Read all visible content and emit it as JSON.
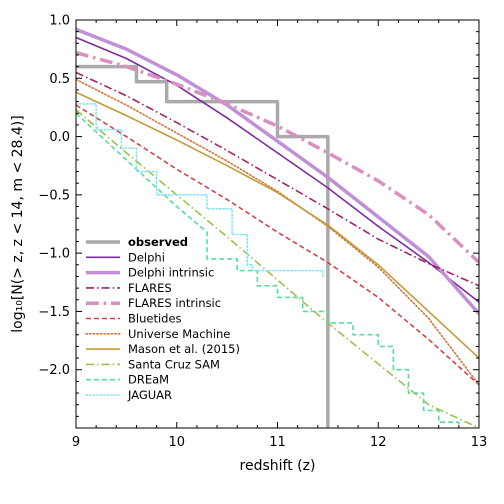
{
  "chart_data": {
    "type": "line",
    "title": "",
    "xlabel": "redshift (z)",
    "ylabel": "log₁₀[N(> z, z < 14, m < 28.4)]",
    "xlim": [
      9,
      13
    ],
    "ylim": [
      -2.5,
      1.0
    ],
    "xticks": [
      9,
      10,
      11,
      12,
      13
    ],
    "xtick_labels": [
      "9",
      "10",
      "11",
      "12",
      "13"
    ],
    "yticks": [
      1.0,
      0.5,
      0.0,
      -0.5,
      -1.0,
      -1.5,
      -2.0
    ],
    "ytick_labels": [
      "1.0",
      "0.5",
      "0.0",
      "−0.5",
      "−1.0",
      "−1.5",
      "−2.0"
    ],
    "grid": false,
    "legend_position": "lower-left",
    "series": [
      {
        "name": "observed",
        "color": "#aaaaaa",
        "style": "step",
        "dash": "solid",
        "width": 3.5,
        "bold": true,
        "x": [
          9.0,
          9.6,
          9.6,
          9.9,
          9.9,
          11.0,
          11.0,
          11.5,
          11.5
        ],
        "y": [
          0.6,
          0.6,
          0.47,
          0.47,
          0.3,
          0.3,
          0.0,
          0.0,
          -2.5
        ]
      },
      {
        "name": "Delphi",
        "color": "#7b2d9f",
        "style": "line",
        "dash": "solid",
        "width": 1.6,
        "x": [
          9.0,
          9.5,
          10.0,
          10.5,
          11.0,
          11.5,
          12.0,
          12.5,
          13.0
        ],
        "y": [
          0.85,
          0.67,
          0.44,
          0.16,
          -0.14,
          -0.44,
          -0.77,
          -1.08,
          -1.42
        ]
      },
      {
        "name": "Delphi intrinsic",
        "color": "#c08fd6",
        "style": "line",
        "dash": "solid",
        "width": 3.5,
        "x": [
          9.0,
          9.5,
          10.0,
          10.5,
          11.0,
          11.5,
          12.0,
          12.5,
          13.0
        ],
        "y": [
          0.92,
          0.75,
          0.53,
          0.27,
          -0.04,
          -0.35,
          -0.69,
          -1.03,
          -1.52
        ]
      },
      {
        "name": "FLARES",
        "color": "#a3226b",
        "style": "line",
        "dash": "dashdot",
        "width": 1.6,
        "x": [
          9.0,
          9.5,
          10.0,
          10.5,
          11.0,
          11.5,
          12.0,
          12.5,
          13.0
        ],
        "y": [
          0.55,
          0.35,
          0.12,
          -0.12,
          -0.37,
          -0.62,
          -0.88,
          -1.09,
          -1.28
        ]
      },
      {
        "name": "FLARES intrinsic",
        "color": "#d98fbf",
        "style": "line",
        "dash": "dashdot",
        "width": 3.5,
        "x": [
          9.0,
          9.5,
          10.0,
          10.5,
          11.0,
          11.5,
          12.0,
          12.5,
          13.0
        ],
        "y": [
          0.72,
          0.6,
          0.45,
          0.28,
          0.09,
          -0.14,
          -0.38,
          -0.67,
          -1.08
        ]
      },
      {
        "name": "Bluetides",
        "color": "#d0444c",
        "style": "line",
        "dash": "dashed",
        "width": 1.6,
        "x": [
          9.0,
          9.5,
          10.0,
          10.5,
          11.0,
          11.5,
          12.0,
          12.5,
          13.0
        ],
        "y": [
          0.27,
          0.0,
          -0.28,
          -0.54,
          -0.82,
          -1.08,
          -1.38,
          -1.74,
          -2.13
        ]
      },
      {
        "name": "Universe Machine",
        "color": "#d4733a",
        "style": "line",
        "dash": "dotted",
        "width": 1.6,
        "x": [
          9.0,
          9.5,
          10.0,
          10.5,
          11.0,
          11.5,
          12.0,
          12.5,
          13.0
        ],
        "y": [
          0.49,
          0.27,
          0.03,
          -0.21,
          -0.47,
          -0.77,
          -1.12,
          -1.56,
          -2.13
        ]
      },
      {
        "name": "Mason et al. (2015)",
        "color": "#c29a38",
        "style": "line",
        "dash": "solid",
        "width": 1.6,
        "x": [
          9.0,
          9.5,
          10.0,
          10.5,
          11.0,
          11.5,
          12.0,
          12.5,
          13.0
        ],
        "y": [
          0.38,
          0.18,
          -0.03,
          -0.25,
          -0.48,
          -0.76,
          -1.1,
          -1.5,
          -1.9
        ]
      },
      {
        "name": "Santa Cruz SAM",
        "color": "#9ac24a",
        "style": "line",
        "dash": "dashdot",
        "width": 1.6,
        "x": [
          9.0,
          9.5,
          10.0,
          10.5,
          11.0,
          11.5,
          12.0,
          12.5,
          13.0
        ],
        "y": [
          0.23,
          -0.14,
          -0.5,
          -0.86,
          -1.23,
          -1.6,
          -1.95,
          -2.3,
          -2.5
        ]
      },
      {
        "name": "DREaM",
        "color": "#55dd99",
        "style": "step",
        "dash": "dashed",
        "width": 1.6,
        "x": [
          9.0,
          9.5,
          10.0,
          10.3,
          10.3,
          10.6,
          10.6,
          10.8,
          10.8,
          11.0,
          11.0,
          11.25,
          11.25,
          11.5,
          11.5,
          11.75,
          11.75,
          12.0,
          12.0,
          12.15,
          12.15,
          12.3,
          12.3,
          12.45,
          12.45,
          12.6,
          12.6,
          12.8,
          12.8
        ],
        "y": [
          0.2,
          -0.2,
          -0.6,
          -0.82,
          -1.05,
          -1.05,
          -1.15,
          -1.15,
          -1.28,
          -1.28,
          -1.38,
          -1.38,
          -1.5,
          -1.5,
          -1.6,
          -1.6,
          -1.7,
          -1.7,
          -1.8,
          -1.8,
          -2.0,
          -2.0,
          -2.2,
          -2.2,
          -2.35,
          -2.35,
          -2.45,
          -2.45,
          -2.5
        ]
      },
      {
        "name": "JAGUAR",
        "color": "#7fe6f5",
        "style": "step",
        "dash": "dotted",
        "width": 1.6,
        "x": [
          9.0,
          9.2,
          9.2,
          9.45,
          9.45,
          9.6,
          9.6,
          9.8,
          9.8,
          10.3,
          10.3,
          10.55,
          10.55,
          10.7,
          10.7,
          10.75,
          10.75,
          11.45,
          11.45
        ],
        "y": [
          0.28,
          0.28,
          0.06,
          0.06,
          -0.1,
          -0.1,
          -0.3,
          -0.3,
          -0.5,
          -0.5,
          -0.62,
          -0.62,
          -0.84,
          -0.84,
          -1.1,
          -1.1,
          -1.15,
          -1.15,
          -1.2
        ]
      }
    ]
  }
}
